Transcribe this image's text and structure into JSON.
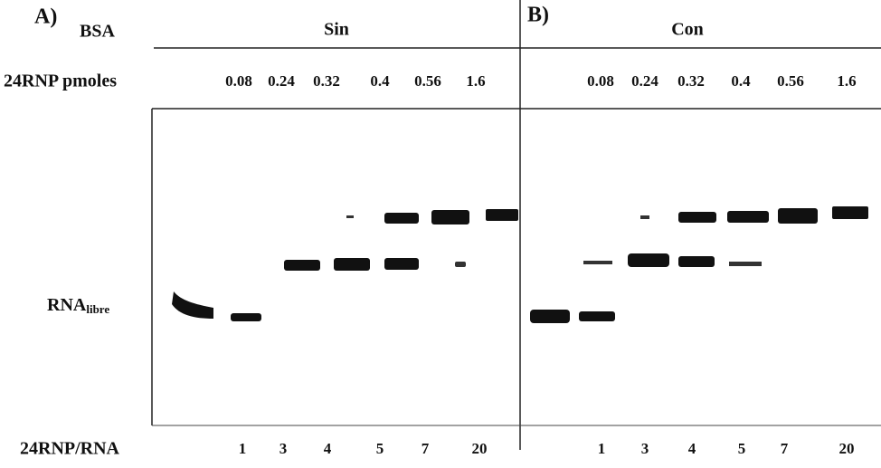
{
  "header": {
    "panel_a_label": "A)",
    "bsa_label": "BSA",
    "panel_a_condition": "Sin",
    "panel_b_label": "B)",
    "panel_b_condition": "Con"
  },
  "pmoles": {
    "label": "24RNP pmoles",
    "panel_a": [
      0.08,
      0.24,
      0.32,
      0.4,
      0.56,
      1.6
    ],
    "panel_b": [
      0.08,
      0.24,
      0.32,
      0.4,
      0.56,
      1.6
    ]
  },
  "ratio": {
    "label": "24RNP/RNA",
    "panel_a": [
      1,
      3,
      4,
      5,
      7,
      20
    ],
    "panel_b": [
      1,
      3,
      4,
      5,
      7,
      20
    ]
  },
  "rna_label": {
    "main": "RNA",
    "sub": "libre"
  }
}
